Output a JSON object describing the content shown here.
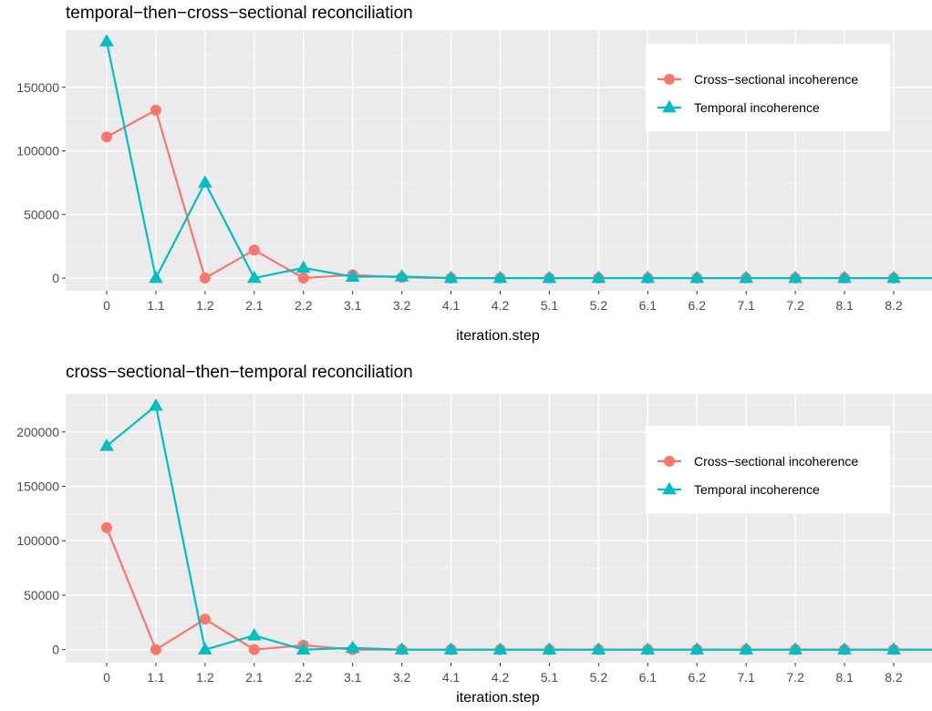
{
  "colors": {
    "panel_background": "#ebebeb",
    "grid_major": "#ffffff",
    "cross_sectional": "#f8766d",
    "temporal": "#00bfc4"
  },
  "chart_data": [
    {
      "type": "line",
      "title": "temporal−then−cross−sectional reconciliation",
      "xlabel": "iteration.step",
      "ylabel": "",
      "categories": [
        "0",
        "1.1",
        "1.2",
        "2.1",
        "2.2",
        "3.1",
        "3.2",
        "4.1",
        "4.2",
        "5.1",
        "5.2",
        "6.1",
        "6.2",
        "7.1",
        "7.2",
        "8.1",
        "8.2"
      ],
      "yticks": [
        0,
        50000,
        100000,
        150000
      ],
      "ytick_labels": [
        "0",
        "50000",
        "100000",
        "150000"
      ],
      "ylim": [
        -10000,
        195000
      ],
      "grid": true,
      "legend_position": "top-right",
      "series": [
        {
          "name": "Cross−sectional incoherence",
          "marker": "circle",
          "color": "#f8766d",
          "values": [
            111000,
            132000,
            0,
            22000,
            0,
            2500,
            500,
            0,
            0,
            0,
            0,
            0,
            0,
            0,
            0,
            0,
            0
          ]
        },
        {
          "name": "Temporal incoherence",
          "marker": "triangle",
          "color": "#00bfc4",
          "values": [
            186000,
            0,
            75000,
            0,
            8000,
            1000,
            1200,
            0,
            0,
            0,
            0,
            0,
            0,
            0,
            0,
            0,
            0
          ]
        }
      ]
    },
    {
      "type": "line",
      "title": "cross−sectional−then−temporal reconciliation",
      "xlabel": "iteration.step",
      "ylabel": "",
      "categories": [
        "0",
        "1.1",
        "1.2",
        "2.1",
        "2.2",
        "3.1",
        "3.2",
        "4.1",
        "4.2",
        "5.1",
        "5.2",
        "6.1",
        "6.2",
        "7.1",
        "7.2",
        "8.1",
        "8.2"
      ],
      "yticks": [
        0,
        50000,
        100000,
        150000,
        200000
      ],
      "ytick_labels": [
        "0",
        "50000",
        "100000",
        "150000",
        "200000"
      ],
      "ylim": [
        -12000,
        235000
      ],
      "grid": true,
      "legend_position": "top-right",
      "series": [
        {
          "name": "Cross−sectional incoherence",
          "marker": "circle",
          "color": "#f8766d",
          "values": [
            112000,
            0,
            28000,
            0,
            4000,
            0,
            0,
            0,
            0,
            0,
            0,
            0,
            0,
            0,
            0,
            0,
            0
          ]
        },
        {
          "name": "Temporal incoherence",
          "marker": "triangle",
          "color": "#00bfc4",
          "values": [
            187000,
            224000,
            0,
            13000,
            0,
            1500,
            0,
            0,
            0,
            0,
            0,
            0,
            0,
            0,
            0,
            0,
            0
          ]
        }
      ]
    }
  ]
}
